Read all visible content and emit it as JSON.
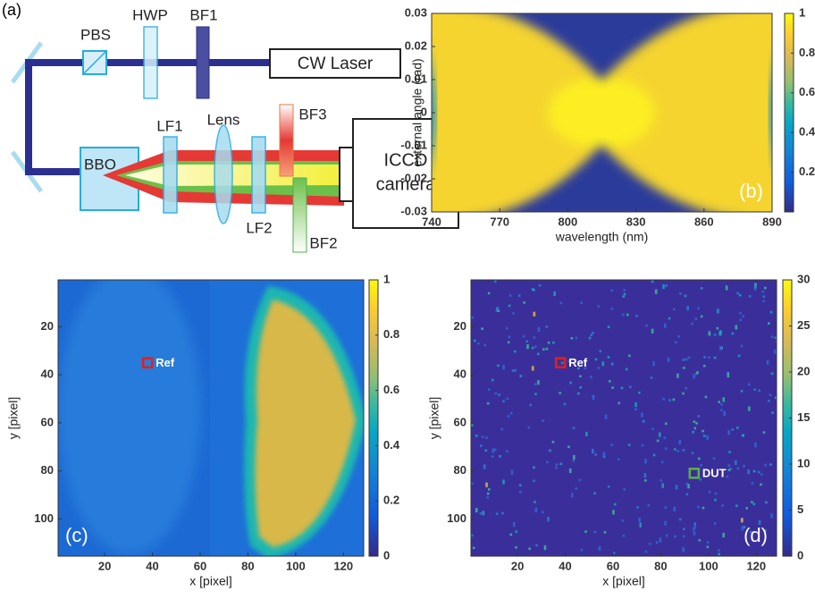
{
  "diagram": {
    "panel_label": "(a)",
    "labels": [
      "PBS",
      "HWP",
      "BF1",
      "CW Laser",
      "LF1",
      "Lens",
      "BF3",
      "BBO",
      "LF2",
      "BF2"
    ],
    "camera": [
      "ICCD",
      "camera"
    ]
  },
  "chart_data": [
    {
      "type": "heatmap",
      "panel_label": "(b)",
      "xlabel": "wavelength (nm)",
      "ylabel": "external angle (rad)",
      "xlim": [
        740,
        890
      ],
      "xticks": [
        740,
        770,
        800,
        830,
        860,
        890
      ],
      "ylim": [
        -0.03,
        0.03
      ],
      "yticks": [
        -0.03,
        -0.02,
        -0.01,
        0,
        0.01,
        0.02,
        0.03
      ],
      "clim": [
        0,
        1
      ],
      "cticks": [
        0.2,
        0.4,
        0.6,
        0.8,
        1
      ]
    },
    {
      "type": "heatmap",
      "panel_label": "(c)",
      "xlabel": "x [pixel]",
      "ylabel": "y [pixel]",
      "xlim": [
        0.5,
        128.5
      ],
      "xticks": [
        20,
        40,
        60,
        80,
        100,
        120
      ],
      "ylim": [
        115.5,
        0.5
      ],
      "yticks": [
        20,
        40,
        60,
        80,
        100
      ],
      "clim": [
        0,
        1
      ],
      "cticks": [
        0,
        0.2,
        0.4,
        0.6,
        0.8,
        1
      ],
      "annotations": [
        {
          "text": "Ref",
          "x": 38,
          "y": 35,
          "color": "#e02020"
        }
      ]
    },
    {
      "type": "heatmap",
      "panel_label": "(d)",
      "xlabel": "x [pixel]",
      "ylabel": "y [pixel]",
      "xlim": [
        0.5,
        128.5
      ],
      "xticks": [
        20,
        40,
        60,
        80,
        100,
        120
      ],
      "ylim": [
        115.5,
        0.5
      ],
      "yticks": [
        20,
        40,
        60,
        80,
        100
      ],
      "clim": [
        0,
        30
      ],
      "cticks": [
        0,
        5,
        10,
        15,
        20,
        25,
        30
      ],
      "annotations": [
        {
          "text": "Ref",
          "x": 38,
          "y": 35,
          "color": "#e02020"
        },
        {
          "text": "DUT",
          "x": 94,
          "y": 81,
          "color": "#5cb040"
        }
      ]
    }
  ]
}
